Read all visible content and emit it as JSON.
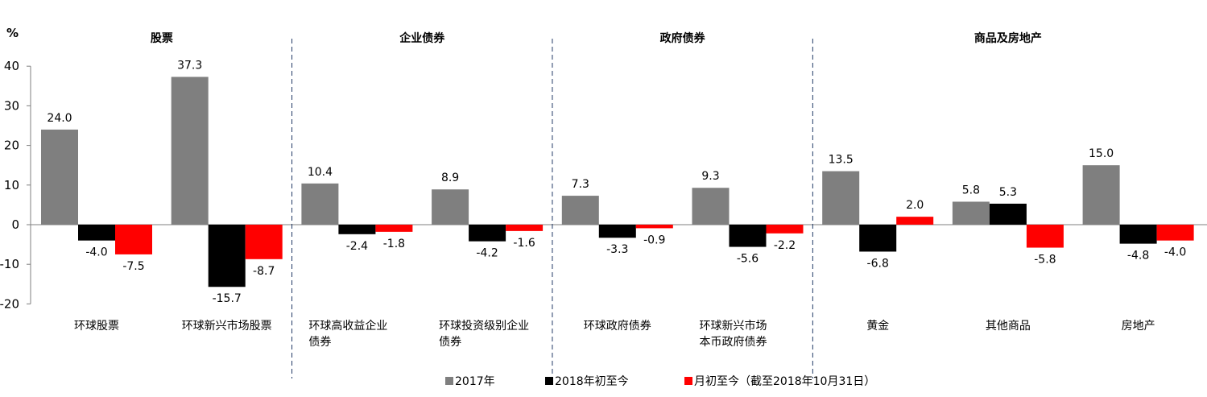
{
  "chart_data": {
    "type": "bar",
    "y_unit": "%",
    "ylim": [
      -20,
      40
    ],
    "yticks": [
      "40",
      "30",
      "20",
      "10",
      "0",
      "-10",
      "-20"
    ],
    "grid": false,
    "legend_position": "bottom",
    "groups": [
      {
        "label": "股票",
        "categories": [
          "环球股票",
          "环球新兴市场股票"
        ]
      },
      {
        "label": "企业债券",
        "categories": [
          "环球高收益企业债券",
          "环球投资级别企业债券"
        ]
      },
      {
        "label": "政府债券",
        "categories": [
          "环球政府债券",
          "环球新兴市场本币政府债券"
        ]
      },
      {
        "label": "商品及房地产",
        "categories": [
          "黄金",
          "其他商品",
          "房地产"
        ]
      }
    ],
    "categories": [
      "环球股票",
      "环球新兴市场股票",
      "环球高收益企业债券",
      "环球投资级别企业债券",
      "环球政府债券",
      "环球新兴市场本币政府债券",
      "黄金",
      "其他商品",
      "房地产"
    ],
    "category_display_lines": [
      [
        "环球股票"
      ],
      [
        "环球新兴市场股票"
      ],
      [
        "环球高收益企业",
        "债券"
      ],
      [
        "环球投资级别企业",
        "债券"
      ],
      [
        "环球政府债券"
      ],
      [
        "环球新兴市场",
        "本币政府债券"
      ],
      [
        "黄金"
      ],
      [
        "其他商品"
      ],
      [
        "房地产"
      ]
    ],
    "series": [
      {
        "name": "2017年",
        "color": "#7f7f7f",
        "values": [
          24.0,
          37.3,
          10.4,
          8.9,
          7.3,
          9.3,
          13.5,
          5.8,
          15.0
        ]
      },
      {
        "name": "2018年初至今",
        "color": "#000000",
        "values": [
          -4.0,
          -15.7,
          -2.4,
          -4.2,
          -3.3,
          -5.6,
          -6.8,
          5.3,
          -4.8
        ]
      },
      {
        "name": "月初至今（截至2018年10月31日）",
        "color": "#ff0000",
        "values": [
          -7.5,
          -8.7,
          -1.8,
          -1.6,
          -0.9,
          -2.2,
          2.0,
          -5.8,
          -4.0
        ]
      }
    ]
  }
}
